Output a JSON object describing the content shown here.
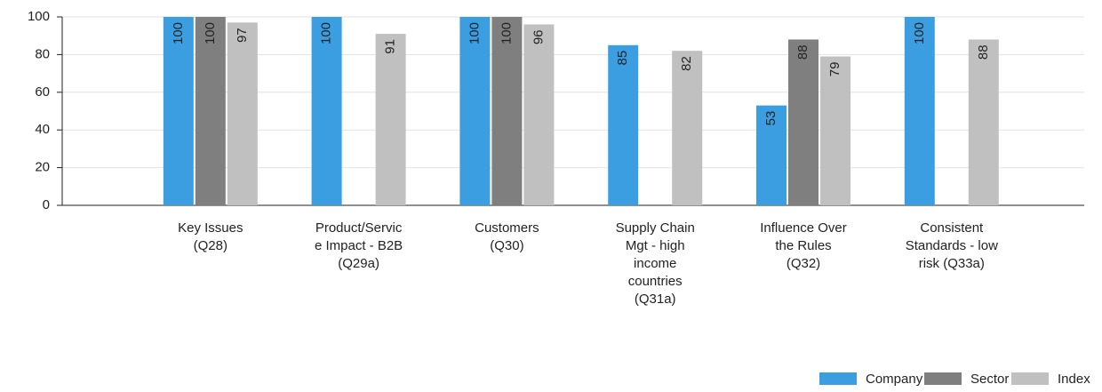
{
  "chart_data": {
    "type": "bar",
    "categories": [
      [
        "Key Issues",
        "(Q28)"
      ],
      [
        "Product/Servic",
        "e Impact - B2B",
        "(Q29a)"
      ],
      [
        "Customers",
        "(Q30)"
      ],
      [
        "Supply Chain",
        "Mgt - high",
        "income",
        "countries",
        "(Q31a)"
      ],
      [
        "Influence Over",
        "the Rules",
        "(Q32)"
      ],
      [
        "Consistent",
        "Standards - low",
        "risk (Q33a)"
      ]
    ],
    "series": [
      {
        "name": "Company",
        "color": "#3a9ee0",
        "values": [
          100,
          100,
          100,
          85,
          53,
          100
        ]
      },
      {
        "name": "Sector",
        "color": "#7f7f7f",
        "values": [
          100,
          null,
          100,
          null,
          88,
          null
        ]
      },
      {
        "name": "Index",
        "color": "#c0c0c0",
        "values": [
          97,
          91,
          96,
          82,
          79,
          88
        ]
      }
    ],
    "ylim": [
      0,
      100
    ],
    "yticks": [
      0,
      20,
      40,
      60,
      80,
      100
    ],
    "grid": true,
    "legend": "bottom-right"
  }
}
